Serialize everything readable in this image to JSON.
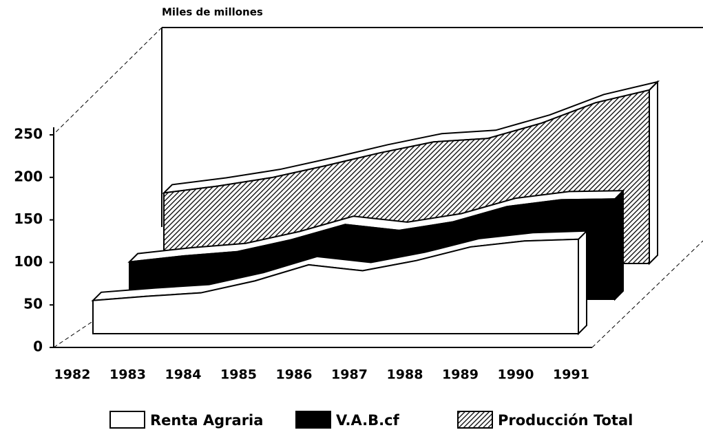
{
  "chart_data": {
    "type": "area3d",
    "title": "Miles de millones",
    "categories": [
      "1982",
      "1983",
      "1984",
      "1985",
      "1986",
      "1987",
      "1988",
      "1989",
      "1990",
      "1991"
    ],
    "series": [
      {
        "name": "Renta Agraria",
        "color": "#ffffff",
        "values": [
          39,
          44,
          48,
          62,
          81,
          74,
          86,
          102,
          109,
          111
        ]
      },
      {
        "name": "V.A.B.cf",
        "color": "#000000",
        "values": [
          44,
          51,
          56,
          70,
          88,
          81,
          91,
          109,
          117,
          118
        ]
      },
      {
        "name": "Producción Total",
        "color": "hatch",
        "values": [
          83,
          91,
          101,
          115,
          130,
          143,
          147,
          165,
          189,
          204
        ]
      }
    ],
    "ylim": [
      0,
      250
    ],
    "yticks": [
      0,
      50,
      100,
      150,
      200,
      250
    ],
    "legend": "bottom"
  }
}
